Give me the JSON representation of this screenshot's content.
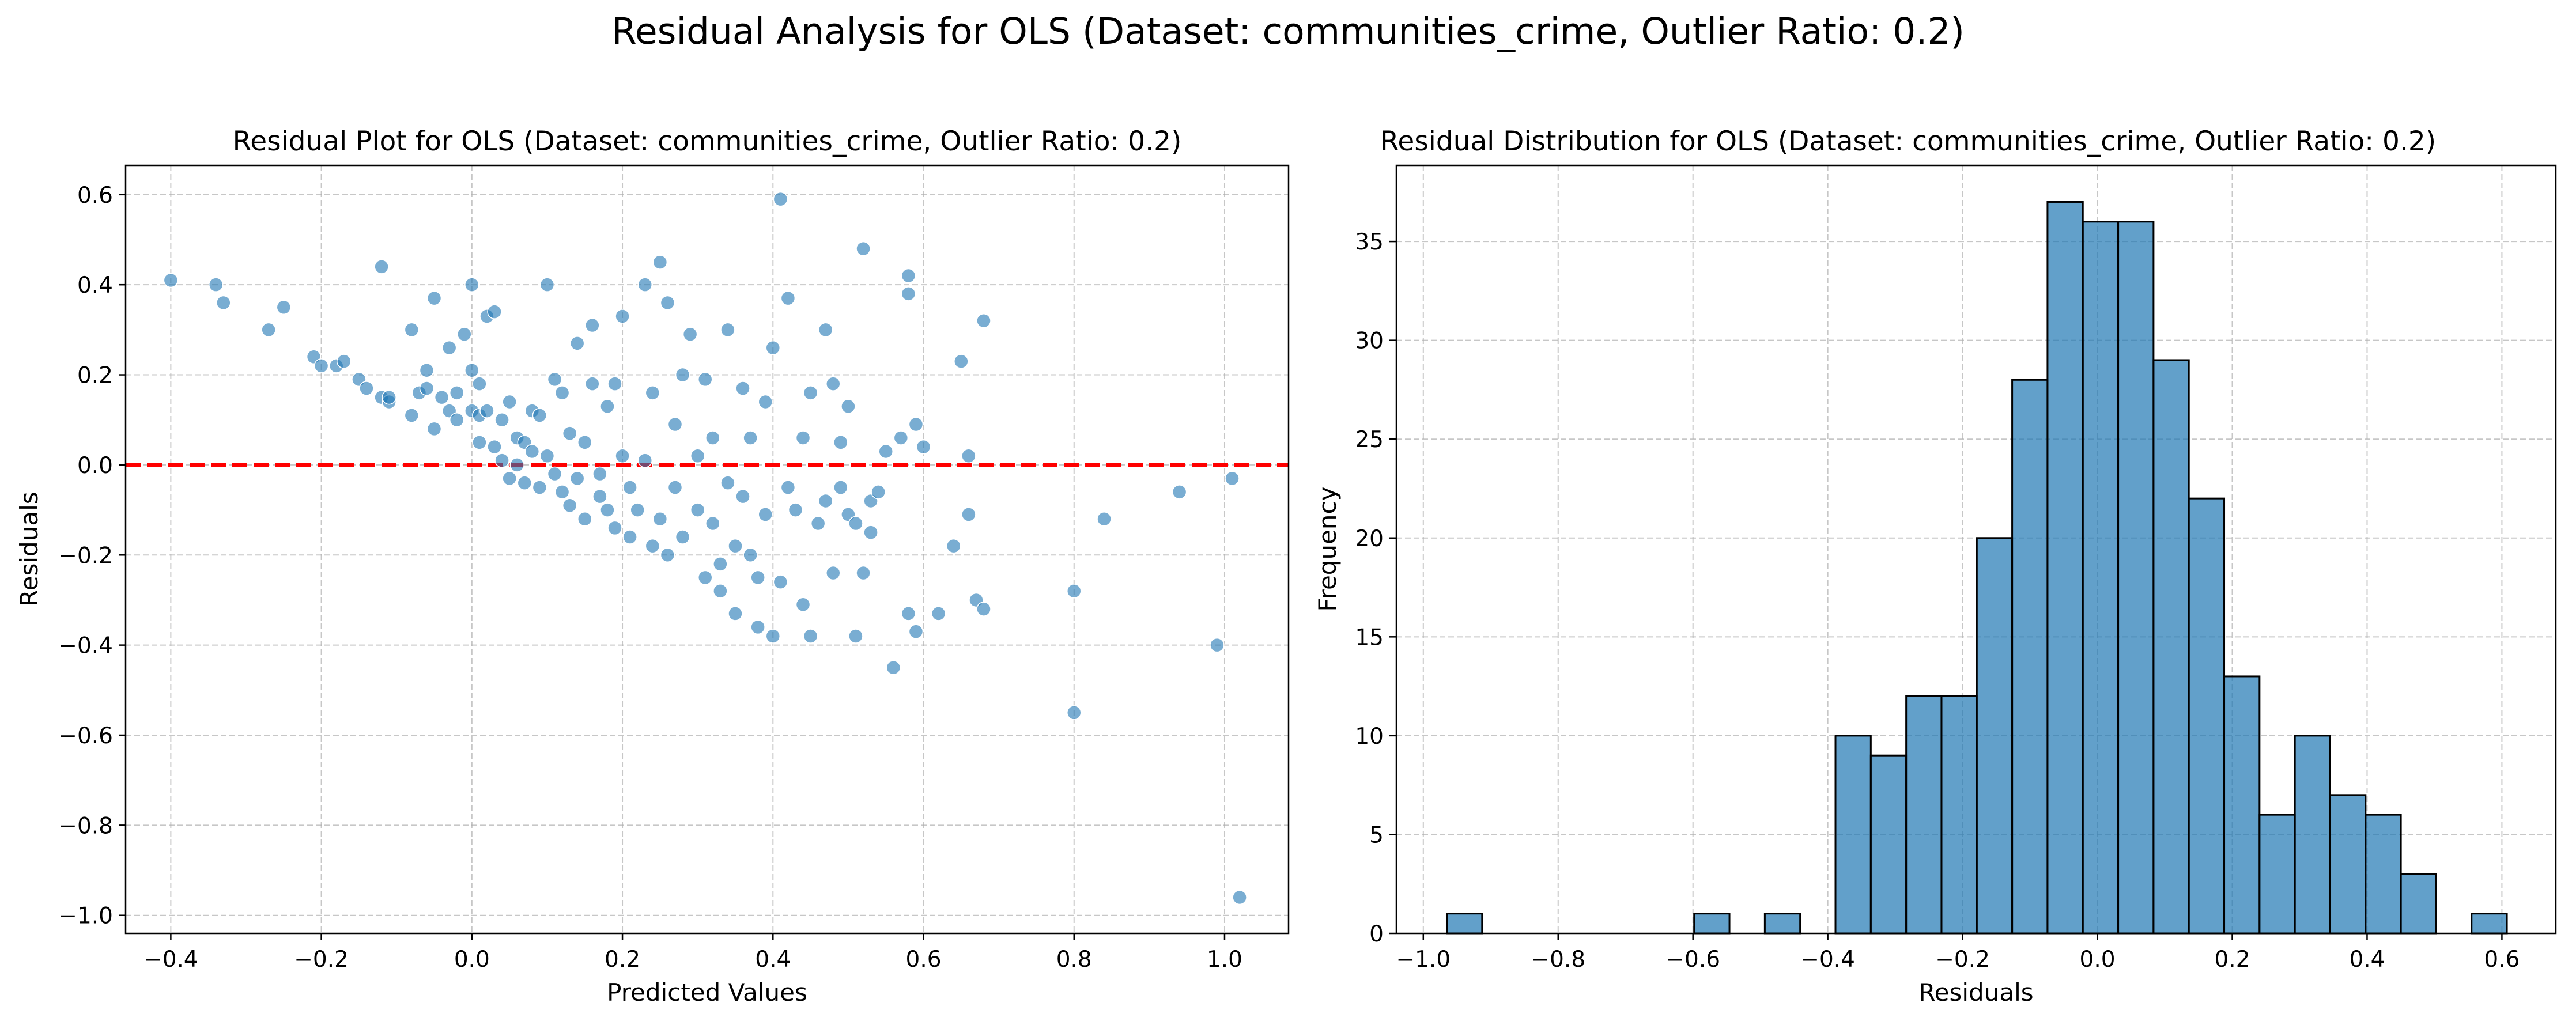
{
  "suptitle": "Residual Analysis for OLS (Dataset: communities_crime, Outlier Ratio: 0.2)",
  "chart_data": [
    {
      "type": "scatter",
      "title": "Residual Plot for OLS (Dataset: communities_crime, Outlier Ratio: 0.2)",
      "xlabel": "Predicted Values",
      "ylabel": "Residuals",
      "xlim": [
        -0.46,
        1.085
      ],
      "ylim": [
        -1.04,
        0.665
      ],
      "xticks": [
        -0.4,
        -0.2,
        0.0,
        0.2,
        0.4,
        0.6,
        0.8,
        1.0
      ],
      "xtick_labels": [
        "−0.4",
        "−0.2",
        "0.0",
        "0.2",
        "0.4",
        "0.6",
        "0.8",
        "1.0"
      ],
      "yticks": [
        -1.0,
        -0.8,
        -0.6,
        -0.4,
        -0.2,
        0.0,
        0.2,
        0.4,
        0.6
      ],
      "ytick_labels": [
        "−1.0",
        "−0.8",
        "−0.6",
        "−0.4",
        "−0.2",
        "0.0",
        "0.2",
        "0.4",
        "0.6"
      ],
      "grid": true,
      "point_color": "#1f77b4",
      "reference_line": {
        "y": 0,
        "color": "#ff0000",
        "style": "dashed"
      },
      "points": [
        [
          -0.4,
          0.41
        ],
        [
          -0.34,
          0.4
        ],
        [
          -0.33,
          0.36
        ],
        [
          -0.27,
          0.3
        ],
        [
          -0.25,
          0.35
        ],
        [
          -0.21,
          0.24
        ],
        [
          -0.2,
          0.22
        ],
        [
          -0.18,
          0.22
        ],
        [
          -0.17,
          0.23
        ],
        [
          -0.15,
          0.19
        ],
        [
          -0.14,
          0.17
        ],
        [
          -0.12,
          0.15
        ],
        [
          -0.12,
          0.44
        ],
        [
          -0.11,
          0.14
        ],
        [
          -0.11,
          0.15
        ],
        [
          -0.08,
          0.11
        ],
        [
          -0.08,
          0.3
        ],
        [
          -0.07,
          0.16
        ],
        [
          -0.06,
          0.21
        ],
        [
          -0.06,
          0.17
        ],
        [
          -0.05,
          0.37
        ],
        [
          -0.05,
          0.08
        ],
        [
          -0.04,
          0.15
        ],
        [
          -0.03,
          0.12
        ],
        [
          -0.03,
          0.26
        ],
        [
          -0.02,
          0.1
        ],
        [
          -0.02,
          0.16
        ],
        [
          -0.01,
          0.29
        ],
        [
          0.0,
          0.21
        ],
        [
          0.0,
          0.12
        ],
        [
          0.0,
          0.4
        ],
        [
          0.01,
          0.18
        ],
        [
          0.01,
          0.11
        ],
        [
          0.01,
          0.05
        ],
        [
          0.02,
          0.12
        ],
        [
          0.02,
          0.33
        ],
        [
          0.03,
          0.34
        ],
        [
          0.03,
          0.04
        ],
        [
          0.04,
          0.01
        ],
        [
          0.04,
          0.1
        ],
        [
          0.05,
          0.14
        ],
        [
          0.05,
          -0.03
        ],
        [
          0.06,
          0.0
        ],
        [
          0.06,
          0.06
        ],
        [
          0.07,
          0.05
        ],
        [
          0.07,
          -0.04
        ],
        [
          0.08,
          0.12
        ],
        [
          0.08,
          0.03
        ],
        [
          0.09,
          -0.05
        ],
        [
          0.09,
          0.11
        ],
        [
          0.1,
          0.4
        ],
        [
          0.1,
          0.02
        ],
        [
          0.11,
          0.19
        ],
        [
          0.11,
          -0.02
        ],
        [
          0.12,
          0.16
        ],
        [
          0.12,
          -0.06
        ],
        [
          0.13,
          0.07
        ],
        [
          0.13,
          -0.09
        ],
        [
          0.14,
          0.27
        ],
        [
          0.14,
          -0.03
        ],
        [
          0.15,
          0.05
        ],
        [
          0.15,
          -0.12
        ],
        [
          0.16,
          0.18
        ],
        [
          0.16,
          0.31
        ],
        [
          0.17,
          -0.02
        ],
        [
          0.17,
          -0.07
        ],
        [
          0.18,
          0.13
        ],
        [
          0.18,
          -0.1
        ],
        [
          0.19,
          0.18
        ],
        [
          0.19,
          -0.14
        ],
        [
          0.2,
          0.33
        ],
        [
          0.2,
          0.02
        ],
        [
          0.21,
          -0.16
        ],
        [
          0.21,
          -0.05
        ],
        [
          0.22,
          -0.1
        ],
        [
          0.23,
          0.4
        ],
        [
          0.23,
          0.01
        ],
        [
          0.24,
          -0.18
        ],
        [
          0.24,
          0.16
        ],
        [
          0.25,
          0.45
        ],
        [
          0.25,
          -0.12
        ],
        [
          0.26,
          0.36
        ],
        [
          0.26,
          -0.2
        ],
        [
          0.27,
          -0.05
        ],
        [
          0.27,
          0.09
        ],
        [
          0.28,
          0.2
        ],
        [
          0.28,
          -0.16
        ],
        [
          0.29,
          0.29
        ],
        [
          0.3,
          -0.1
        ],
        [
          0.3,
          0.02
        ],
        [
          0.31,
          0.19
        ],
        [
          0.31,
          -0.25
        ],
        [
          0.32,
          -0.13
        ],
        [
          0.32,
          0.06
        ],
        [
          0.33,
          -0.22
        ],
        [
          0.33,
          -0.28
        ],
        [
          0.34,
          -0.04
        ],
        [
          0.34,
          0.3
        ],
        [
          0.35,
          -0.18
        ],
        [
          0.35,
          -0.33
        ],
        [
          0.36,
          0.17
        ],
        [
          0.36,
          -0.07
        ],
        [
          0.37,
          -0.2
        ],
        [
          0.37,
          0.06
        ],
        [
          0.38,
          -0.25
        ],
        [
          0.38,
          -0.36
        ],
        [
          0.39,
          0.14
        ],
        [
          0.39,
          -0.11
        ],
        [
          0.4,
          -0.38
        ],
        [
          0.4,
          0.26
        ],
        [
          0.41,
          0.59
        ],
        [
          0.41,
          -0.26
        ],
        [
          0.42,
          0.37
        ],
        [
          0.42,
          -0.05
        ],
        [
          0.43,
          -0.1
        ],
        [
          0.44,
          -0.31
        ],
        [
          0.44,
          0.06
        ],
        [
          0.45,
          0.16
        ],
        [
          0.45,
          -0.38
        ],
        [
          0.46,
          -0.13
        ],
        [
          0.47,
          0.3
        ],
        [
          0.47,
          -0.08
        ],
        [
          0.48,
          -0.24
        ],
        [
          0.48,
          0.18
        ],
        [
          0.49,
          0.05
        ],
        [
          0.49,
          -0.05
        ],
        [
          0.5,
          -0.11
        ],
        [
          0.5,
          0.13
        ],
        [
          0.51,
          -0.38
        ],
        [
          0.51,
          -0.13
        ],
        [
          0.52,
          0.48
        ],
        [
          0.52,
          -0.24
        ],
        [
          0.53,
          -0.15
        ],
        [
          0.53,
          -0.08
        ],
        [
          0.54,
          -0.06
        ],
        [
          0.55,
          0.03
        ],
        [
          0.56,
          -0.45
        ],
        [
          0.57,
          0.06
        ],
        [
          0.58,
          0.38
        ],
        [
          0.58,
          0.42
        ],
        [
          0.58,
          -0.33
        ],
        [
          0.59,
          0.09
        ],
        [
          0.59,
          -0.37
        ],
        [
          0.6,
          0.04
        ],
        [
          0.62,
          -0.33
        ],
        [
          0.64,
          -0.18
        ],
        [
          0.65,
          0.23
        ],
        [
          0.66,
          0.02
        ],
        [
          0.66,
          -0.11
        ],
        [
          0.67,
          -0.3
        ],
        [
          0.68,
          0.32
        ],
        [
          0.68,
          -0.32
        ],
        [
          0.8,
          -0.28
        ],
        [
          0.8,
          -0.55
        ],
        [
          0.84,
          -0.12
        ],
        [
          0.94,
          -0.06
        ],
        [
          0.99,
          -0.4
        ],
        [
          1.01,
          -0.03
        ],
        [
          1.02,
          -0.96
        ]
      ]
    },
    {
      "type": "bar",
      "title": "Residual Distribution for OLS (Dataset: communities_crime, Outlier Ratio: 0.2)",
      "xlabel": "Residuals",
      "ylabel": "Frequency",
      "xlim": [
        -1.04,
        0.68
      ],
      "ylim": [
        0,
        38.85
      ],
      "xticks": [
        -1.0,
        -0.8,
        -0.6,
        -0.4,
        -0.2,
        0.0,
        0.2,
        0.4,
        0.6
      ],
      "xtick_labels": [
        "−1.0",
        "−0.8",
        "−0.6",
        "−0.4",
        "−0.2",
        "0.0",
        "0.2",
        "0.4",
        "0.6"
      ],
      "yticks": [
        0,
        5,
        10,
        15,
        20,
        25,
        30,
        35
      ],
      "ytick_labels": [
        "0",
        "5",
        "10",
        "15",
        "20",
        "25",
        "30",
        "35"
      ],
      "grid": true,
      "bar_color": "#1f77b4",
      "bin_start": -0.9652,
      "bin_width": 0.05242,
      "counts": [
        1,
        0,
        0,
        0,
        0,
        0,
        0,
        1,
        0,
        1,
        0,
        10,
        9,
        12,
        12,
        20,
        28,
        37,
        36,
        36,
        29,
        22,
        13,
        6,
        10,
        7,
        6,
        3,
        0,
        1
      ]
    }
  ]
}
